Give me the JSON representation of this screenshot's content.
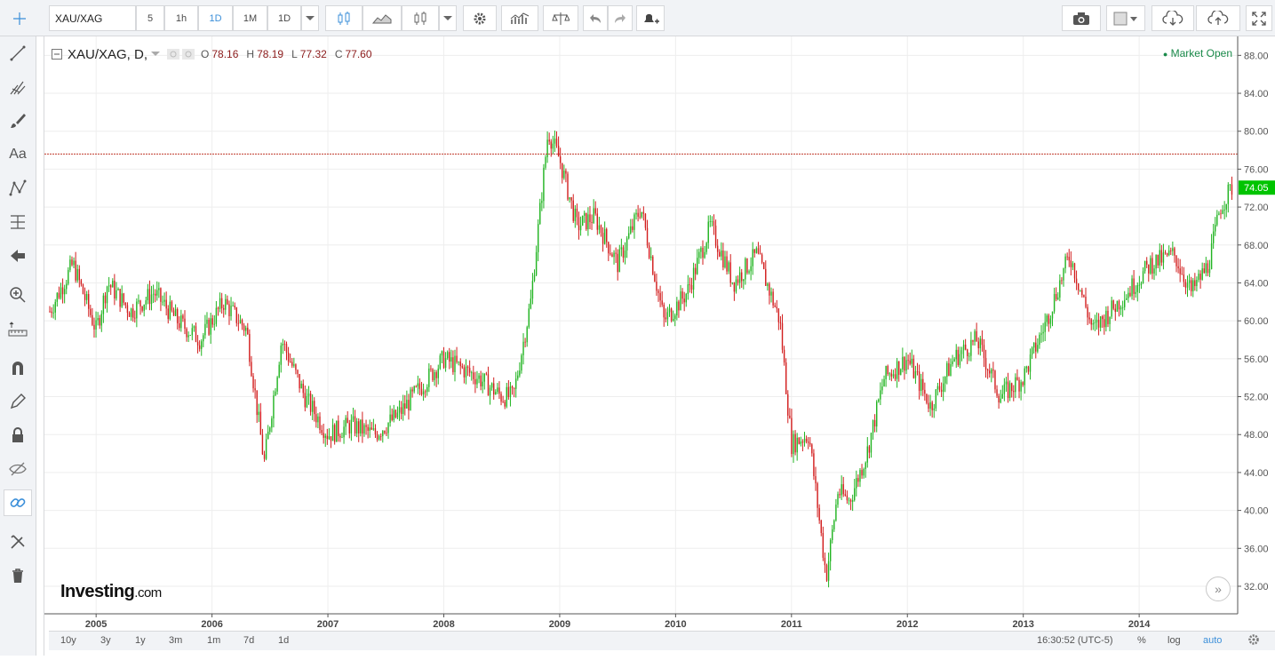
{
  "toolbar": {
    "symbol": "XAU/XAG",
    "intervals": [
      "5",
      "1h",
      "1D",
      "1M",
      "1D"
    ],
    "active_interval_index": 2
  },
  "legend": {
    "symbol": "XAU/XAG, D,",
    "o_label": "O",
    "o": "78.16",
    "h_label": "H",
    "h": "78.19",
    "l_label": "L",
    "l": "77.32",
    "c_label": "C",
    "c": "77.60"
  },
  "status": {
    "market": "Market Open"
  },
  "logo": {
    "brand": "Investing",
    "suffix": ".com"
  },
  "price_tag": {
    "value": "74.05",
    "color": "#00c400"
  },
  "bottom": {
    "ranges": [
      "10y",
      "3y",
      "1y",
      "3m",
      "1m",
      "7d",
      "1d"
    ],
    "time": "16:30:52 (UTC-5)",
    "percent": "%",
    "log": "log",
    "auto": "auto"
  },
  "chart_data": {
    "type": "candlestick",
    "symbol": "XAU/XAG",
    "interval": "D",
    "x_ticks": [
      "2005",
      "2006",
      "2007",
      "2008",
      "2009",
      "2010",
      "2011",
      "2012",
      "2013",
      "2014"
    ],
    "y_ticks": [
      "32.00",
      "36.00",
      "40.00",
      "44.00",
      "48.00",
      "52.00",
      "56.00",
      "60.00",
      "64.00",
      "68.00",
      "72.00",
      "76.00",
      "80.00",
      "84.00",
      "88.00"
    ],
    "ylim": [
      29,
      90
    ],
    "reference_line": 77.6,
    "last_price": 74.05,
    "series": [
      {
        "name": "XAU/XAG",
        "x": [
          2004.6,
          2004.8,
          2005.0,
          2005.1,
          2005.3,
          2005.5,
          2005.7,
          2005.9,
          2006.1,
          2006.3,
          2006.45,
          2006.6,
          2006.8,
          2007.0,
          2007.2,
          2007.4,
          2007.6,
          2007.8,
          2008.0,
          2008.15,
          2008.3,
          2008.5,
          2008.6,
          2008.75,
          2008.9,
          2009.0,
          2009.15,
          2009.3,
          2009.5,
          2009.7,
          2009.9,
          2010.1,
          2010.3,
          2010.5,
          2010.7,
          2010.9,
          2011.0,
          2011.15,
          2011.3,
          2011.4,
          2011.5,
          2011.65,
          2011.8,
          2012.0,
          2012.2,
          2012.4,
          2012.6,
          2012.8,
          2013.0,
          2013.2,
          2013.4,
          2013.6,
          2013.75,
          2013.9,
          2014.1,
          2014.3,
          2014.45,
          2014.6,
          2014.7,
          2014.8
        ],
        "values": [
          61,
          66,
          59,
          64,
          61,
          63,
          60,
          58,
          62,
          59,
          45,
          58,
          52,
          48,
          49,
          48,
          50,
          53,
          56,
          55,
          54,
          52,
          52,
          62,
          80,
          77,
          70,
          71,
          66,
          72,
          60,
          63,
          70,
          64,
          67,
          60,
          47,
          48,
          33,
          42,
          41,
          46,
          54,
          56,
          51,
          56,
          58,
          52,
          54,
          60,
          67,
          59,
          61,
          63,
          66,
          67,
          63,
          66,
          72,
          74.05
        ]
      }
    ]
  }
}
